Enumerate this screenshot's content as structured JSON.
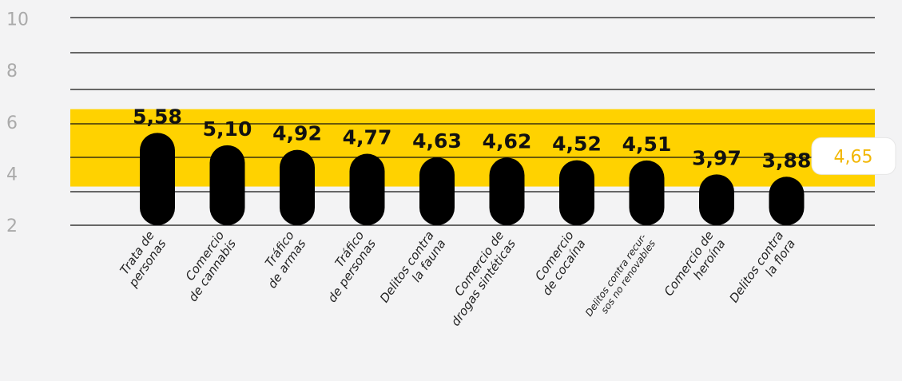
{
  "chart_data": {
    "type": "bar",
    "categories": [
      [
        "Trata de",
        "personas"
      ],
      [
        "Comercio",
        "de cannabis"
      ],
      [
        "Tráfico",
        "de armas"
      ],
      [
        "Tráfico",
        "de personas"
      ],
      [
        "Delitos contra",
        "la fauna"
      ],
      [
        "Comercio de",
        "drogas sintéticas"
      ],
      [
        "Comercio",
        "de cocaína"
      ],
      [
        "Delitos contra recur-",
        "sos no renovables"
      ],
      [
        "Comercio de",
        "heroína"
      ],
      [
        "Delitos contra",
        "la flora"
      ]
    ],
    "values": [
      5.58,
      5.1,
      4.92,
      4.77,
      4.63,
      4.62,
      4.52,
      4.51,
      3.97,
      3.88
    ],
    "value_labels": [
      "5,58",
      "5,10",
      "4,92",
      "4,77",
      "4,63",
      "4,62",
      "4,52",
      "4,51",
      "3,97",
      "3,88"
    ],
    "yticks": [
      "10",
      "8",
      "6",
      "4",
      "2"
    ],
    "ytick_values": [
      10,
      8,
      6,
      4,
      2
    ],
    "ylim": [
      2,
      10
    ],
    "band": [
      3.5,
      6.5
    ],
    "average": 4.65,
    "average_label": "4,65",
    "grid": true,
    "colors": {
      "bar": "#000000",
      "band": "#ffd200",
      "average_text": "#f2b705",
      "tick_text": "#aaaaaa"
    }
  }
}
